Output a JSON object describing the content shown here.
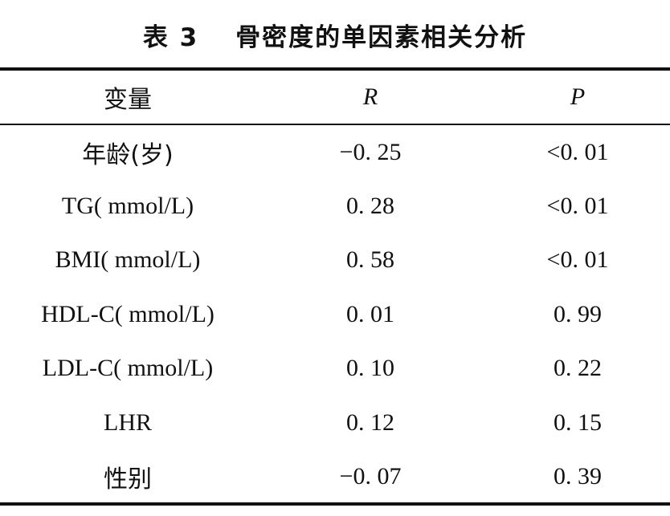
{
  "table": {
    "caption_label": "表 3",
    "caption_text": "骨密度的单因素相关分析",
    "headers": [
      "变量",
      "R",
      "P"
    ],
    "rows": [
      {
        "variable": "年龄(岁)",
        "r": "−0. 25",
        "p": "<0. 01"
      },
      {
        "variable": "TG( mmol/L)",
        "r": "0. 28",
        "p": "<0. 01"
      },
      {
        "variable": "BMI( mmol/L)",
        "r": "0. 58",
        "p": "<0. 01"
      },
      {
        "variable": "HDL-C( mmol/L)",
        "r": "0. 01",
        "p": "0. 99"
      },
      {
        "variable": "LDL-C( mmol/L)",
        "r": "0. 10",
        "p": "0. 22"
      },
      {
        "variable": "LHR",
        "r": "0. 12",
        "p": "0. 15"
      },
      {
        "variable": "性别",
        "r": "−0. 07",
        "p": "0. 39"
      }
    ]
  }
}
